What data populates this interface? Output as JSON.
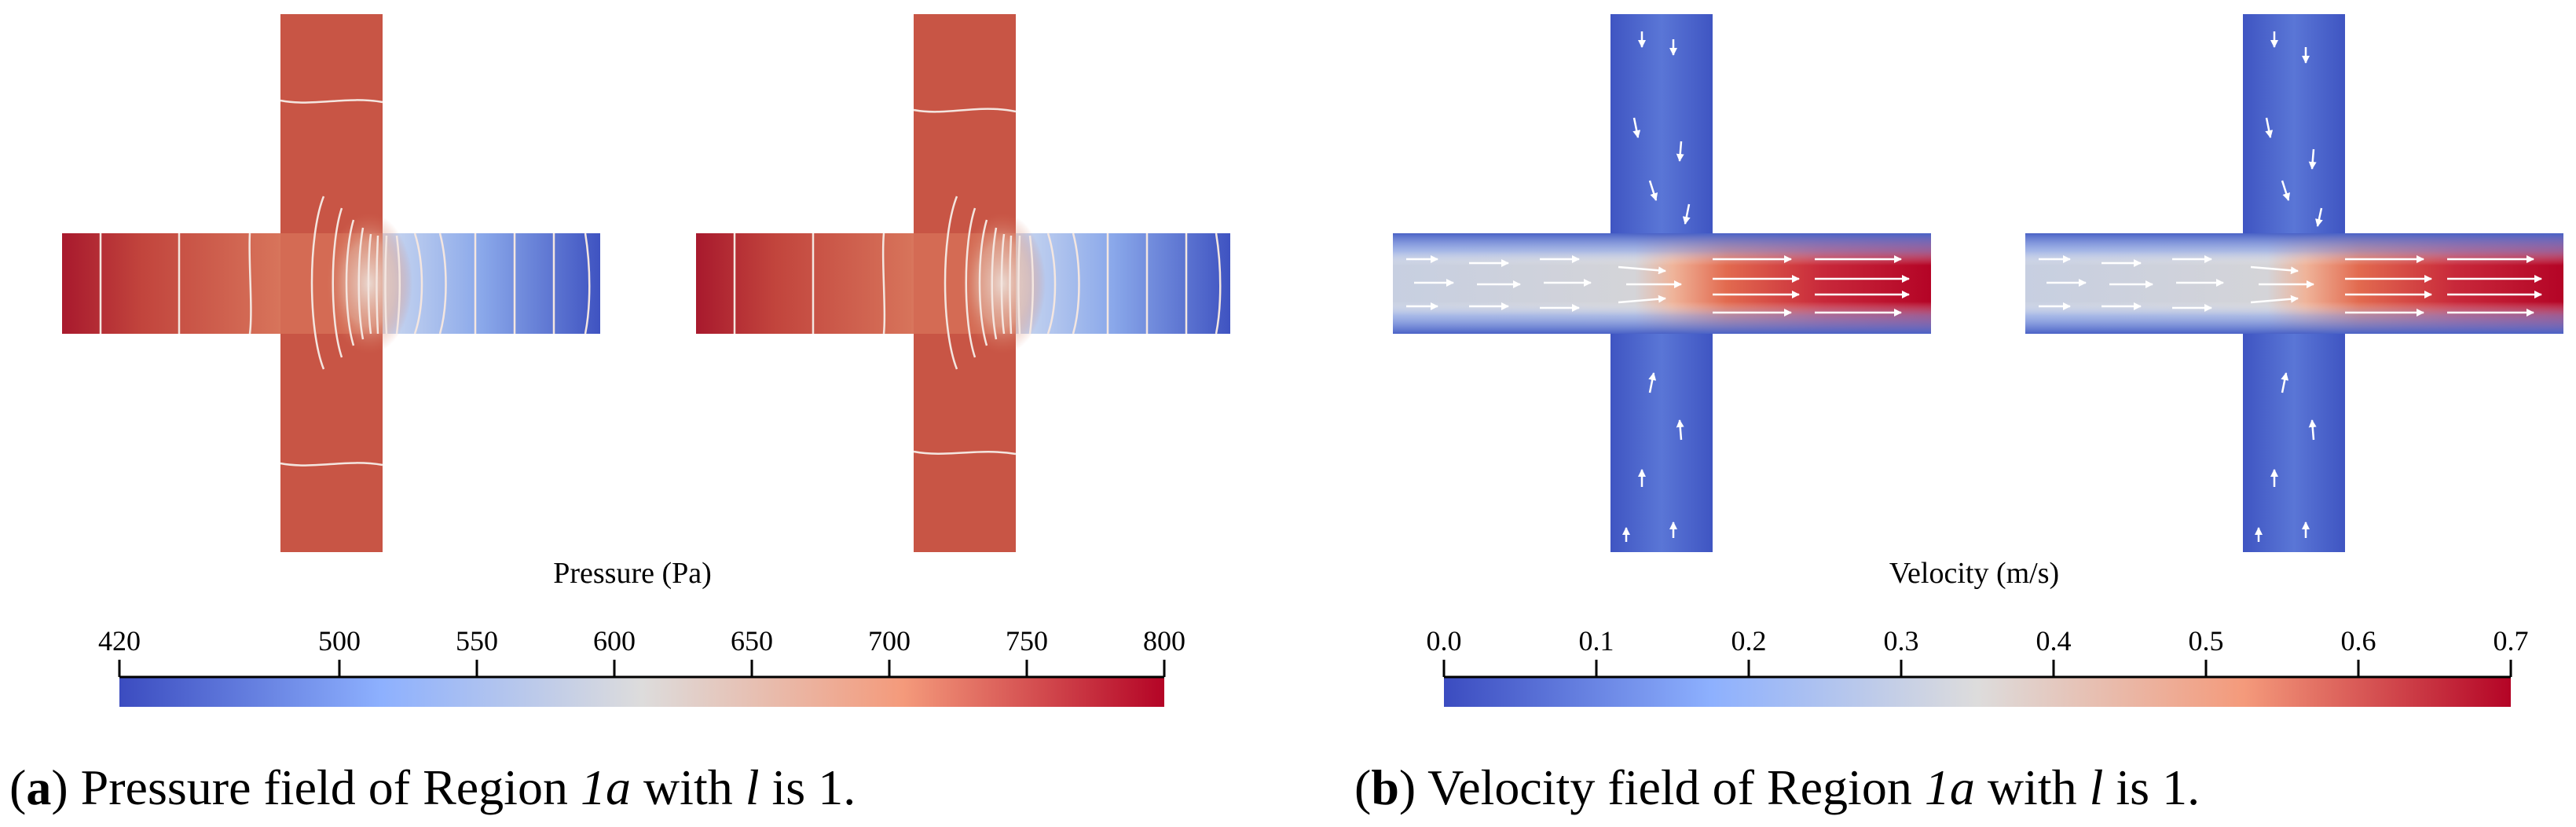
{
  "panels": [
    {
      "id": "a",
      "kind": "pressure",
      "colorbar": {
        "title": "Pressure (Pa)",
        "range": [
          420,
          800
        ],
        "ticks": [
          420,
          500,
          550,
          600,
          650,
          700,
          750,
          800
        ],
        "tick_labels": [
          "420",
          "500",
          "550",
          "600",
          "650",
          "700",
          "750",
          "800"
        ]
      },
      "caption": {
        "letter": "a",
        "open": "(",
        "close": ")",
        "text1": " Pressure field of Region ",
        "italic1": "1a",
        "text2": " with ",
        "italic2": "l",
        "text3": " is 1."
      }
    },
    {
      "id": "b",
      "kind": "velocity",
      "colorbar": {
        "title": "Velocity (m/s)",
        "range": [
          0.0,
          0.7
        ],
        "ticks": [
          0.0,
          0.1,
          0.2,
          0.3,
          0.4,
          0.5,
          0.6,
          0.7
        ],
        "tick_labels": [
          "0.0",
          "0.1",
          "0.2",
          "0.3",
          "0.4",
          "0.5",
          "0.6",
          "0.7"
        ]
      },
      "caption": {
        "letter": "b",
        "open": "(",
        "close": ")",
        "text1": " Velocity field of Region ",
        "italic1": "1a",
        "text2": " with ",
        "italic2": "l",
        "text3": " is 1."
      }
    }
  ],
  "colors": {
    "cool": "#3b4cc0",
    "mid": "#dddcdc",
    "warm": "#b40426",
    "pressure_body": "#cf604a",
    "velocity_body": "#4a66c8"
  }
}
